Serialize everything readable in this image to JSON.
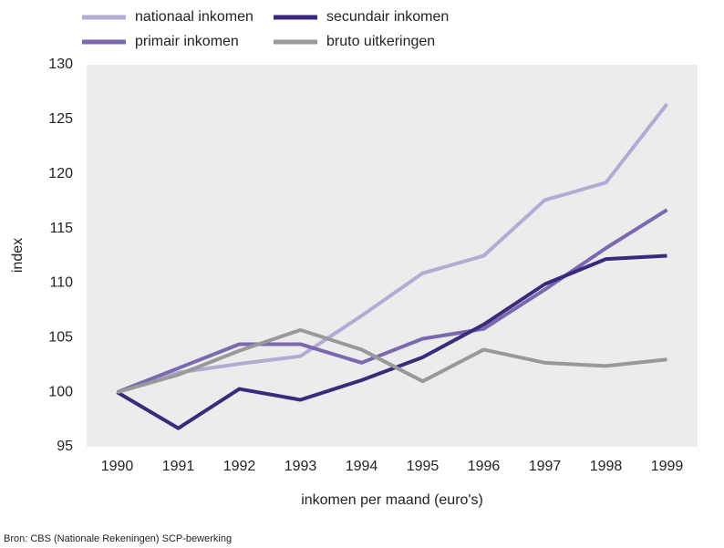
{
  "chart_data": {
    "type": "line",
    "categories": [
      "1990",
      "1991",
      "1992",
      "1993",
      "1994",
      "1995",
      "1996",
      "1997",
      "1998",
      "1999"
    ],
    "series": [
      {
        "name": "nationaal inkomen",
        "color": "#b4abd4",
        "values": [
          100,
          101.8,
          102.6,
          103.3,
          107.0,
          110.9,
          112.5,
          117.6,
          119.2,
          126.4
        ]
      },
      {
        "name": "primair inkomen",
        "color": "#7a69b0",
        "values": [
          100,
          102.2,
          104.4,
          104.4,
          102.7,
          104.9,
          105.8,
          109.4,
          113.2,
          116.7
        ]
      },
      {
        "name": "secundair inkomen",
        "color": "#3b2a7c",
        "values": [
          100,
          96.7,
          100.3,
          99.3,
          101.1,
          103.2,
          106.2,
          109.9,
          112.2,
          112.5
        ]
      },
      {
        "name": "bruto uitkeringen",
        "color": "#999999",
        "values": [
          100,
          101.6,
          103.8,
          105.7,
          103.9,
          101.0,
          103.9,
          102.7,
          102.4,
          103.0
        ]
      }
    ],
    "ylabel": "index",
    "xlabel": "inkomen per maand (euro's)",
    "ylim": [
      95,
      130
    ],
    "yticks": [
      95,
      100,
      105,
      110,
      115,
      120,
      125,
      130
    ],
    "grid": false,
    "legend": "top",
    "source": "Bron: CBS (Nationale Rekeningen) SCP-bewerking"
  }
}
